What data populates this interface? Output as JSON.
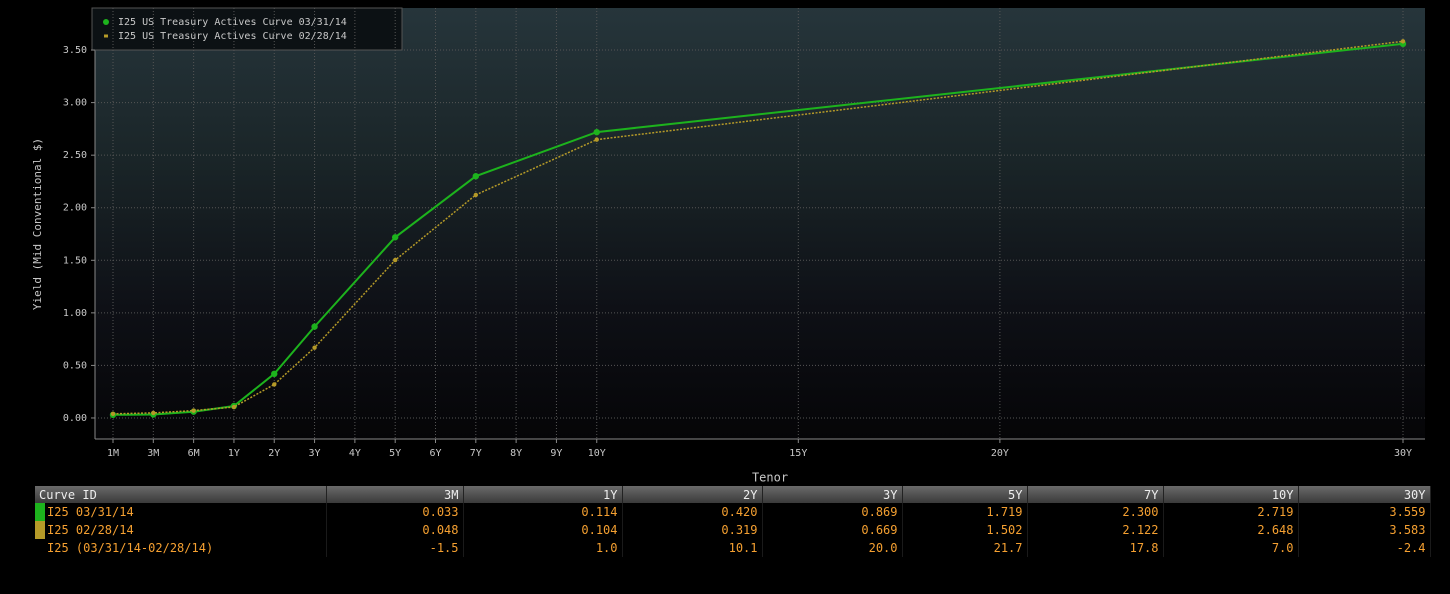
{
  "chart_data": {
    "type": "line",
    "xlabel": "Tenor",
    "ylabel": "Yield (Mid Conventional $)",
    "x": [
      0.0833,
      0.25,
      0.5,
      1,
      2,
      3,
      5,
      7,
      10,
      30
    ],
    "series": [
      {
        "name": "I25 US Treasury Actives Curve 03/31/14",
        "color": "#1db31d",
        "values": [
          0.03,
          0.033,
          0.06,
          0.114,
          0.42,
          0.869,
          1.719,
          2.3,
          2.719,
          3.559
        ]
      },
      {
        "name": "I25 US Treasury Actives Curve 02/28/14",
        "color": "#b59a28",
        "values": [
          0.04,
          0.048,
          0.07,
          0.104,
          0.319,
          0.669,
          1.502,
          2.122,
          2.648,
          3.583
        ]
      }
    ],
    "xlim": [
      0.0833,
      30
    ],
    "xticks": [
      {
        "value": 0.0833,
        "label": "1M"
      },
      {
        "value": 0.25,
        "label": "3M"
      },
      {
        "value": 0.5,
        "label": "6M"
      },
      {
        "value": 1,
        "label": "1Y"
      },
      {
        "value": 2,
        "label": "2Y"
      },
      {
        "value": 3,
        "label": "3Y"
      },
      {
        "value": 4,
        "label": "4Y"
      },
      {
        "value": 5,
        "label": "5Y"
      },
      {
        "value": 6,
        "label": "6Y"
      },
      {
        "value": 7,
        "label": "7Y"
      },
      {
        "value": 8,
        "label": "8Y"
      },
      {
        "value": 9,
        "label": "9Y"
      },
      {
        "value": 10,
        "label": "10Y"
      },
      {
        "value": 15,
        "label": "15Y"
      },
      {
        "value": 20,
        "label": "20Y"
      },
      {
        "value": 30,
        "label": "30Y"
      }
    ],
    "ylim": [
      -0.2,
      3.9
    ],
    "yticks": [
      {
        "value": 0,
        "label": "0.00"
      },
      {
        "value": 0.5,
        "label": "0.50"
      },
      {
        "value": 1,
        "label": "1.00"
      },
      {
        "value": 1.5,
        "label": "1.50"
      },
      {
        "value": 2,
        "label": "2.00"
      },
      {
        "value": 2.5,
        "label": "2.50"
      },
      {
        "value": 3,
        "label": "3.00"
      },
      {
        "value": 3.5,
        "label": "3.50"
      }
    ],
    "grid": true,
    "legend": "upper left"
  },
  "table": {
    "header": [
      "Curve ID",
      "3M",
      "1Y",
      "2Y",
      "3Y",
      "5Y",
      "7Y",
      "10Y",
      "30Y"
    ],
    "rows": [
      [
        "I25 03/31/14",
        "0.033",
        "0.114",
        "0.420",
        "0.869",
        "1.719",
        "2.300",
        "2.719",
        "3.559"
      ],
      [
        "I25 02/28/14",
        "0.048",
        "0.104",
        "0.319",
        "0.669",
        "1.502",
        "2.122",
        "2.648",
        "3.583"
      ],
      [
        "I25 (03/31/14-02/28/14)",
        "-1.5",
        "1.0",
        "10.1",
        "20.0",
        "21.7",
        "17.8",
        "7.0",
        "-2.4"
      ]
    ]
  }
}
